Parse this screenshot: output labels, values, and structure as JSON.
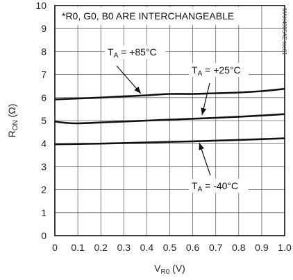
{
  "chart_data": {
    "type": "line",
    "note": "*R0, G0, B0 ARE INTERCHANGEABLE",
    "figure_code": "MAX4885AE toc01",
    "xlabel": {
      "main": "V",
      "sub": "R0",
      "unit": " (V)"
    },
    "ylabel": {
      "main": "R",
      "sub": "ON",
      "unit": " (Ω)"
    },
    "xlim": [
      0,
      1.0
    ],
    "ylim": [
      0,
      10
    ],
    "x_ticks": [
      "0",
      "0.1",
      "0.2",
      "0.3",
      "0.4",
      "0.5",
      "0.6",
      "0.7",
      "0.8",
      "0.9",
      "1.0"
    ],
    "y_ticks": [
      "0",
      "1",
      "2",
      "3",
      "4",
      "5",
      "6",
      "7",
      "8",
      "9",
      "10"
    ],
    "grid": true,
    "series": [
      {
        "name": "+85°C",
        "label": {
          "main": "T",
          "sub": "A",
          "rest": " = +85°C"
        },
        "x": [
          0,
          0.1,
          0.2,
          0.3,
          0.4,
          0.5,
          0.6,
          0.7,
          0.8,
          0.9,
          1.0
        ],
        "y": [
          5.92,
          5.96,
          6.0,
          6.05,
          6.1,
          6.16,
          6.16,
          6.19,
          6.22,
          6.28,
          6.38
        ]
      },
      {
        "name": "+25°C",
        "label": {
          "main": "T",
          "sub": "A",
          "rest": " = +25°C"
        },
        "x": [
          0,
          0.05,
          0.1,
          0.2,
          0.3,
          0.4,
          0.5,
          0.6,
          0.7,
          0.8,
          0.9,
          1.0
        ],
        "y": [
          4.96,
          4.9,
          4.88,
          4.92,
          4.96,
          5.0,
          5.04,
          5.08,
          5.12,
          5.17,
          5.22,
          5.28
        ]
      },
      {
        "name": "-40°C",
        "label": {
          "main": "T",
          "sub": "A",
          "rest": " = -40°C"
        },
        "x": [
          0,
          0.2,
          0.4,
          0.6,
          0.8,
          1.0
        ],
        "y": [
          3.97,
          4.0,
          4.05,
          4.1,
          4.16,
          4.23
        ]
      }
    ]
  }
}
